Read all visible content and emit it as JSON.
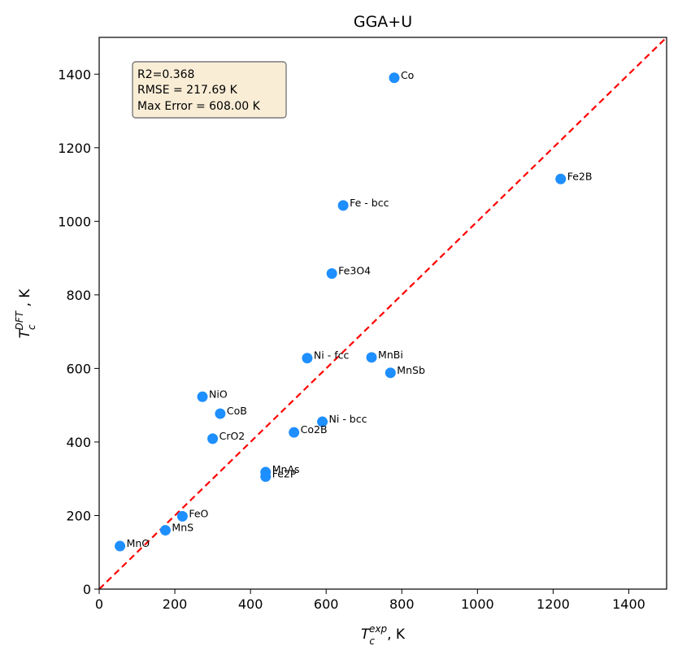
{
  "chart_data": {
    "type": "scatter",
    "title": "GGA+U",
    "xlabel": {
      "main": "T",
      "sub": "c",
      "sup": "exp",
      "unit": ", K"
    },
    "ylabel": {
      "main": "T",
      "sub": "c",
      "sup": "DFT",
      "unit": " , K"
    },
    "xlim": [
      0,
      1500
    ],
    "ylim": [
      0,
      1500
    ],
    "xticks": [
      0,
      200,
      400,
      600,
      800,
      1000,
      1200,
      1400
    ],
    "yticks": [
      0,
      200,
      400,
      600,
      800,
      1000,
      1200,
      1400
    ],
    "grid": false,
    "point_color": "#1e8fff",
    "reference_line": {
      "style": "dashed",
      "color": "#ff0000",
      "from": [
        0,
        0
      ],
      "to": [
        1500,
        1500
      ]
    },
    "stats_box": {
      "lines": [
        "R2=0.368",
        "RMSE = 217.69 K",
        "Max Error = 608.00 K"
      ],
      "background": "#f9edd6",
      "border": "#7a7a7a"
    },
    "points": [
      {
        "label": "Co",
        "x": 780,
        "y": 1390
      },
      {
        "label": "Fe2B",
        "x": 1220,
        "y": 1115
      },
      {
        "label": "Fe - bcc",
        "x": 645,
        "y": 1043
      },
      {
        "label": "Fe3O4",
        "x": 615,
        "y": 858
      },
      {
        "label": "Ni - fcc",
        "x": 550,
        "y": 628
      },
      {
        "label": "MnBi",
        "x": 720,
        "y": 630
      },
      {
        "label": "MnSb",
        "x": 770,
        "y": 588
      },
      {
        "label": "NiO",
        "x": 273,
        "y": 523
      },
      {
        "label": "CoB",
        "x": 320,
        "y": 477
      },
      {
        "label": "Ni - bcc",
        "x": 590,
        "y": 455
      },
      {
        "label": "Co2B",
        "x": 515,
        "y": 426
      },
      {
        "label": "CrO2",
        "x": 300,
        "y": 409
      },
      {
        "label": "MnAs",
        "x": 440,
        "y": 318
      },
      {
        "label": "Fe2P",
        "x": 440,
        "y": 306
      },
      {
        "label": "FeO",
        "x": 220,
        "y": 198
      },
      {
        "label": "MnS",
        "x": 175,
        "y": 160
      },
      {
        "label": "MnO",
        "x": 55,
        "y": 117
      }
    ]
  }
}
